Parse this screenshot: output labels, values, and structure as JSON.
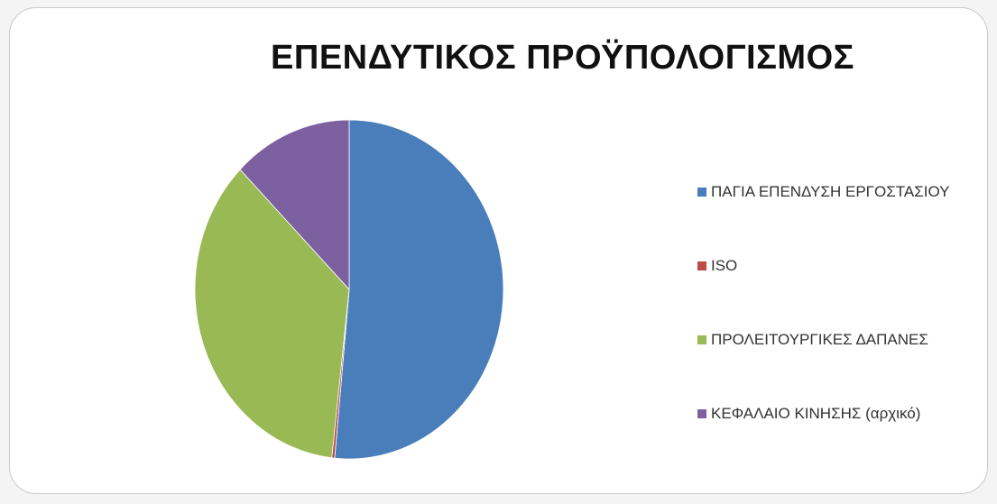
{
  "chart_data": {
    "type": "pie",
    "title": "ΕΠΕΝΔΥΤΙΚΟΣ ΠΡΟΫΠΟΛΟΓΙΣΜΟΣ",
    "categories": [
      "ΠΑΓΙΑ ΕΠΕΝΔΥΣΗ ΕΡΓΟΣΤΑΣΙΟΥ",
      "ISO",
      "ΠΡΟΛΕΙΤΟΥΡΓΙΚΕΣ ΔΑΠΑΝΕΣ",
      "ΚΕΦΑΛΑΙΟ ΚΙΝΗΣΗΣ (αρχικό)"
    ],
    "values": [
      51.5,
      0.3,
      35.7,
      12.5
    ],
    "colors": [
      "#4a7ebb",
      "#be4b48",
      "#98b954",
      "#7d60a0"
    ],
    "legend_position": "right"
  }
}
